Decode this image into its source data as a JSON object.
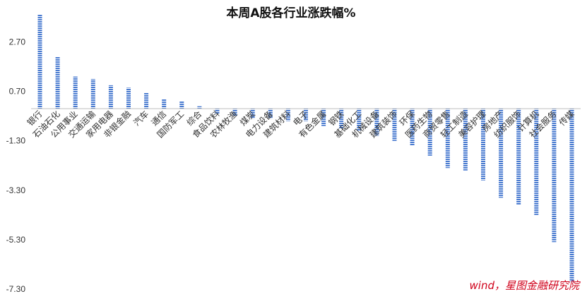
{
  "chart_data": {
    "type": "bar",
    "title": "本周A股各行业涨跌幅%",
    "xlabel": "",
    "ylabel": "",
    "ylim": [
      -7.3,
      4.0
    ],
    "yticks": [
      2.7,
      0.7,
      -1.3,
      -3.3,
      -5.3,
      -7.3
    ],
    "ytick_labels": [
      "2.70",
      "0.70",
      "-1.30",
      "-3.30",
      "-5.30",
      "-7.30"
    ],
    "grid": false,
    "legend": "none",
    "bar_color": "#4a7bd0",
    "categories": [
      "银行",
      "石油石化",
      "公用事业",
      "交通运输",
      "家用电器",
      "非银金融",
      "汽车",
      "通信",
      "国防军工",
      "综合",
      "食品饮料",
      "农林牧渔",
      "煤炭",
      "电力设备",
      "建筑材料",
      "电子",
      "有色金属",
      "钢铁",
      "基础化工",
      "机械设备",
      "建筑装饰",
      "环保",
      "医药生物",
      "商贸零售",
      "轻工制造",
      "美容护理",
      "房地产",
      "纺织服饰",
      "计算机",
      "社会服务",
      "传媒"
    ],
    "values": [
      3.8,
      2.1,
      1.3,
      1.2,
      0.95,
      0.85,
      0.65,
      0.4,
      0.3,
      0.1,
      -0.2,
      -0.3,
      -0.4,
      -0.4,
      -0.5,
      -0.5,
      -0.7,
      -0.8,
      -0.9,
      -1.1,
      -1.3,
      -1.5,
      -1.9,
      -2.4,
      -2.5,
      -2.9,
      -3.6,
      -3.9,
      -4.3,
      -5.4,
      -7.0
    ]
  },
  "source_note": "wind，星图金融研究院"
}
